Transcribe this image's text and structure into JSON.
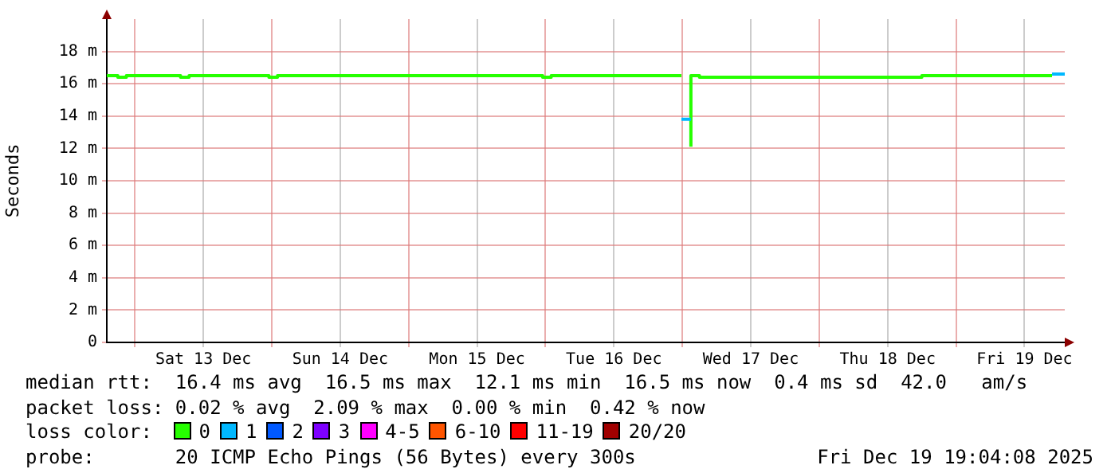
{
  "chart_data": {
    "type": "step",
    "ylabel": "Seconds",
    "legend_title": "loss color:",
    "legend": "bottom",
    "grid": true,
    "marker": "none",
    "xlim": [
      "2025-12-12T19:04",
      "2025-12-19T19:04"
    ],
    "xticks": [
      {
        "value": "2025-12-13T00:00",
        "label": null
      },
      {
        "value": "2025-12-13T12:00",
        "label": "Sat 13 Dec"
      },
      {
        "value": "2025-12-14T00:00",
        "label": null
      },
      {
        "value": "2025-12-14T12:00",
        "label": "Sun 14 Dec"
      },
      {
        "value": "2025-12-15T00:00",
        "label": null
      },
      {
        "value": "2025-12-15T12:00",
        "label": "Mon 15 Dec"
      },
      {
        "value": "2025-12-16T00:00",
        "label": null
      },
      {
        "value": "2025-12-16T12:00",
        "label": "Tue 16 Dec"
      },
      {
        "value": "2025-12-17T00:00",
        "label": null
      },
      {
        "value": "2025-12-17T12:00",
        "label": "Wed 17 Dec"
      },
      {
        "value": "2025-12-18T00:00",
        "label": null
      },
      {
        "value": "2025-12-18T12:00",
        "label": "Thu 18 Dec"
      },
      {
        "value": "2025-12-19T00:00",
        "label": null
      },
      {
        "value": "2025-12-19T12:00",
        "label": "Fri 19 Dec"
      }
    ],
    "ylim": [
      0,
      20
    ],
    "yticks": [
      0,
      {
        "value": 2,
        "label": "2 m"
      },
      {
        "value": 4,
        "label": "4 m"
      },
      {
        "value": 6,
        "label": "6 m"
      },
      {
        "value": 8,
        "label": "8 m"
      },
      {
        "value": 10,
        "label": "10 m"
      },
      {
        "value": 12,
        "label": "12 m"
      },
      {
        "value": 14,
        "label": "14 m"
      },
      {
        "value": 16,
        "label": "16 m"
      },
      {
        "value": 18,
        "label": "18 m"
      }
    ],
    "series": [
      {
        "name": "0",
        "color": "#26ff00",
        "x": [
          "2025-12-12T19:04",
          "2025-12-12T21:00",
          "2025-12-12T22:30",
          "2025-12-13T08:00",
          "2025-12-13T09:30",
          "2025-12-13T23:30",
          "2025-12-14T01:00",
          "2025-12-15T23:30",
          "2025-12-16T01:00",
          "2025-12-16T17:00",
          "2025-12-16T23:50",
          "2025-12-16T23:55",
          "2025-12-17T01:30",
          "2025-12-17T03:00",
          "2025-12-18T18:00",
          "2025-12-18T20:00",
          "2025-12-19T16:50"
        ],
        "values": [
          16.4,
          16.5,
          16.4,
          16.5,
          16.4,
          16.5,
          16.4,
          16.5,
          16.4,
          16.5,
          16.5,
          null,
          12.1,
          16.5,
          16.4,
          16.5,
          16.5
        ]
      },
      {
        "name": "1",
        "color": "#00b8ff",
        "x": [
          "2025-12-16T23:50",
          "2025-12-17T01:30",
          "2025-12-17T01:40",
          "2025-12-19T16:50",
          "2025-12-19T19:04"
        ],
        "values": [
          13.8,
          13.8,
          null,
          16.6,
          16.6
        ]
      },
      {
        "name": "2",
        "color": "#0059ff"
      },
      {
        "name": "3",
        "color": "#7e00ff"
      },
      {
        "name": "4-5",
        "color": "#ff00ff"
      },
      {
        "name": "6-10",
        "color": "#ff5500"
      },
      {
        "name": "11-19",
        "color": "#ff0000"
      },
      {
        "name": "20/20",
        "color": "#a10000"
      }
    ],
    "annotations": [
      "median rtt:  16.4 ms avg  16.5 ms max  12.1 ms min  16.5 ms now  0.4 ms sd  42.0   am/s",
      "packet loss: 0.02 % avg  2.09 % max  0.00 % min  0.42 % now",
      "probe:       20 ICMP Echo Pings (56 Bytes) every 300s",
      "Fri Dec 19 19:04:08 2025"
    ]
  }
}
